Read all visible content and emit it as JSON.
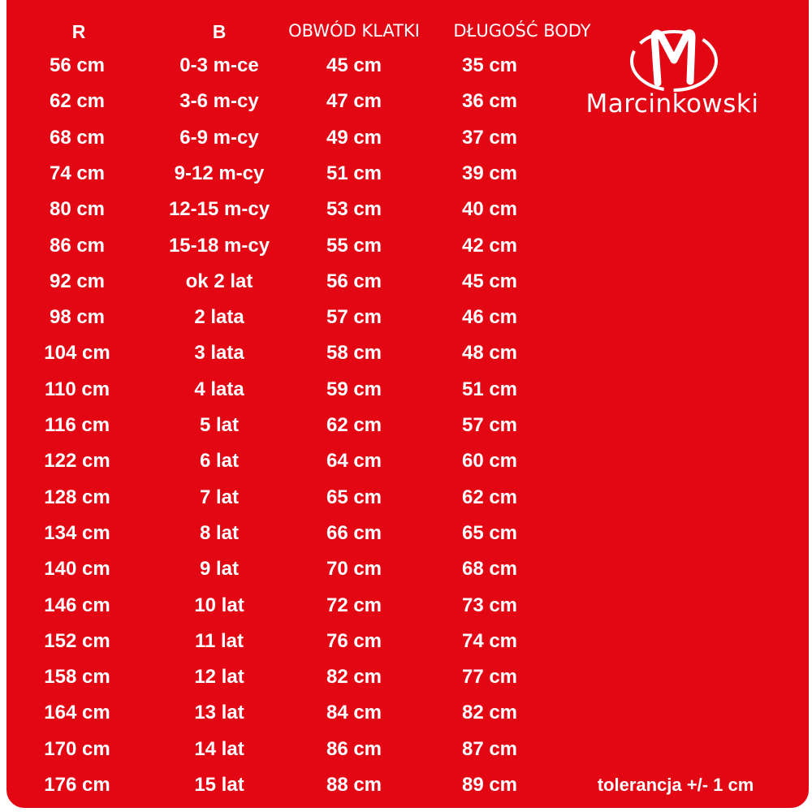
{
  "colors": {
    "background": "#e30613",
    "text": "#ffffff"
  },
  "headers": [
    "R",
    "B",
    "OBWÓD KLATKI",
    "DŁUGOŚĆ BODY"
  ],
  "rows": [
    [
      "56 cm",
      "0-3 m-ce",
      "45 cm",
      "35 cm"
    ],
    [
      "62 cm",
      "3-6 m-cy",
      "47 cm",
      "36 cm"
    ],
    [
      "68 cm",
      "6-9 m-cy",
      "49 cm",
      "37 cm"
    ],
    [
      "74 cm",
      "9-12 m-cy",
      "51 cm",
      "39 cm"
    ],
    [
      "80 cm",
      "12-15 m-cy",
      "53 cm",
      "40 cm"
    ],
    [
      "86 cm",
      "15-18 m-cy",
      "55 cm",
      "42 cm"
    ],
    [
      "92 cm",
      "ok 2 lat",
      "56 cm",
      "45 cm"
    ],
    [
      "98 cm",
      "2 lata",
      "57 cm",
      "46 cm"
    ],
    [
      "104 cm",
      "3 lata",
      "58 cm",
      "48 cm"
    ],
    [
      "110 cm",
      "4 lata",
      "59 cm",
      "51 cm"
    ],
    [
      "116 cm",
      "5 lat",
      "62 cm",
      "57 cm"
    ],
    [
      "122 cm",
      "6 lat",
      "64 cm",
      "60 cm"
    ],
    [
      "128 cm",
      "7 lat",
      "65 cm",
      "62 cm"
    ],
    [
      "134 cm",
      "8 lat",
      "66 cm",
      "65 cm"
    ],
    [
      "140 cm",
      "9 lat",
      "70 cm",
      "68 cm"
    ],
    [
      "146 cm",
      "10 lat",
      "72 cm",
      "73 cm"
    ],
    [
      "152 cm",
      "11 lat",
      "76 cm",
      "74 cm"
    ],
    [
      "158 cm",
      "12 lat",
      "82 cm",
      "77 cm"
    ],
    [
      "164 cm",
      "13 lat",
      "84 cm",
      "82 cm"
    ],
    [
      "170 cm",
      "14 lat",
      "86 cm",
      "87 cm"
    ],
    [
      "176 cm",
      "15 lat",
      "88 cm",
      "89 cm"
    ]
  ],
  "logo": {
    "brand": "Marcinkowski",
    "icon": "m-ring-logo"
  },
  "tolerance": "tolerancja +/- 1 cm"
}
